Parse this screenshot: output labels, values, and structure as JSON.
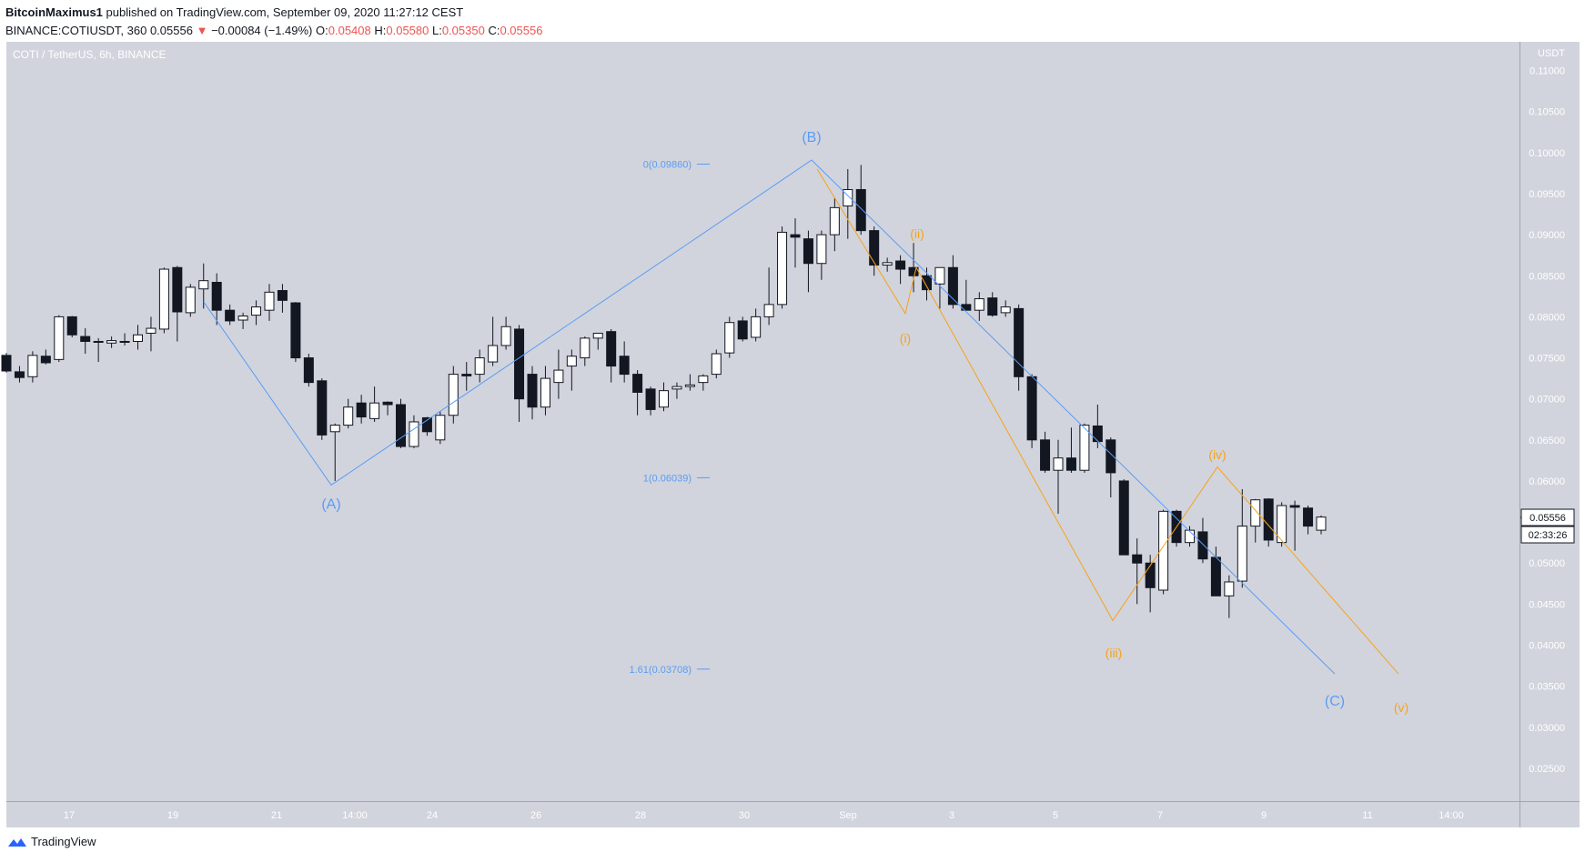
{
  "header": {
    "publisher": "BitcoinMaximus1",
    "published_text": " published on TradingView.com, September 09, 2020 11:27:12 CEST",
    "symbol": "BINANCE:COTIUSDT, 360",
    "last": "0.05556",
    "change_arrow": "▼",
    "change": "−0.00084 (−1.49%)",
    "o_label": "O:",
    "o": "0.05408",
    "h_label": "H:",
    "h": "0.05580",
    "l_label": "L:",
    "l": "0.05350",
    "c_label": "C:",
    "c": "0.05556"
  },
  "chart_title": "COTI / TetherUS, 6h, BINANCE",
  "currency_label": "USDT",
  "footer_brand": "TradingView",
  "colors": {
    "background": "#d1d4dc",
    "bull": "#ffffff",
    "bear": "#131722",
    "wave_primary": "#5b9cf6",
    "wave_sub": "#f7a21b",
    "down": "#ef5350"
  },
  "chart_data": {
    "type": "candlestick",
    "ylim": [
      0.021,
      0.1135
    ],
    "y_ticks": [
      "0.02500",
      "0.03000",
      "0.03500",
      "0.04000",
      "0.04500",
      "0.05000",
      "0.05500",
      "0.06000",
      "0.06500",
      "0.07000",
      "0.07500",
      "0.08000",
      "0.08500",
      "0.09000",
      "0.09500",
      "0.10000",
      "0.10500",
      "0.11000"
    ],
    "x_labels": [
      "17",
      "19",
      "21",
      "14:00",
      "24",
      "26",
      "28",
      "30",
      "Sep",
      "3",
      "5",
      "7",
      "9",
      "11",
      "14:00"
    ],
    "price_label": "0.05556",
    "countdown": "02:33:26",
    "candles": [
      [
        0.0753,
        0.0756,
        0.0732,
        0.0734
      ],
      [
        0.0733,
        0.074,
        0.072,
        0.0726
      ],
      [
        0.0727,
        0.0758,
        0.072,
        0.0753
      ],
      [
        0.0752,
        0.076,
        0.0742,
        0.0744
      ],
      [
        0.0748,
        0.0802,
        0.0745,
        0.08
      ],
      [
        0.08,
        0.0801,
        0.0775,
        0.0778
      ],
      [
        0.0776,
        0.0786,
        0.0755,
        0.077
      ],
      [
        0.077,
        0.0774,
        0.0745,
        0.0769
      ],
      [
        0.0768,
        0.0776,
        0.0762,
        0.0771
      ],
      [
        0.077,
        0.078,
        0.0765,
        0.077
      ],
      [
        0.077,
        0.079,
        0.076,
        0.0778
      ],
      [
        0.078,
        0.08,
        0.0758,
        0.0786
      ],
      [
        0.0785,
        0.086,
        0.078,
        0.0858
      ],
      [
        0.086,
        0.0862,
        0.077,
        0.0806
      ],
      [
        0.0805,
        0.084,
        0.08,
        0.0836
      ],
      [
        0.0834,
        0.0865,
        0.081,
        0.0844
      ],
      [
        0.0842,
        0.0853,
        0.079,
        0.0808
      ],
      [
        0.0808,
        0.0815,
        0.079,
        0.0795
      ],
      [
        0.0796,
        0.0805,
        0.0785,
        0.0801
      ],
      [
        0.0802,
        0.082,
        0.079,
        0.0812
      ],
      [
        0.0808,
        0.084,
        0.0795,
        0.083
      ],
      [
        0.0832,
        0.084,
        0.0805,
        0.082
      ],
      [
        0.0817,
        0.0818,
        0.0745,
        0.075
      ],
      [
        0.075,
        0.0755,
        0.0715,
        0.072
      ],
      [
        0.0722,
        0.0725,
        0.065,
        0.0656
      ],
      [
        0.066,
        0.067,
        0.06,
        0.0668
      ],
      [
        0.0668,
        0.07,
        0.0664,
        0.069
      ],
      [
        0.0695,
        0.0705,
        0.067,
        0.0678
      ],
      [
        0.0676,
        0.0715,
        0.0672,
        0.0695
      ],
      [
        0.0696,
        0.0697,
        0.068,
        0.0693
      ],
      [
        0.0693,
        0.07,
        0.064,
        0.0642
      ],
      [
        0.0642,
        0.068,
        0.064,
        0.0672
      ],
      [
        0.0677,
        0.0678,
        0.0655,
        0.066
      ],
      [
        0.065,
        0.0685,
        0.0645,
        0.068
      ],
      [
        0.068,
        0.074,
        0.067,
        0.073
      ],
      [
        0.073,
        0.0745,
        0.071,
        0.0728
      ],
      [
        0.073,
        0.076,
        0.072,
        0.075
      ],
      [
        0.0745,
        0.08,
        0.074,
        0.0765
      ],
      [
        0.0765,
        0.08,
        0.076,
        0.0788
      ],
      [
        0.0785,
        0.079,
        0.0672,
        0.07
      ],
      [
        0.073,
        0.074,
        0.0675,
        0.069
      ],
      [
        0.069,
        0.074,
        0.068,
        0.0725
      ],
      [
        0.072,
        0.076,
        0.07,
        0.0735
      ],
      [
        0.074,
        0.076,
        0.071,
        0.0752
      ],
      [
        0.075,
        0.0776,
        0.074,
        0.0774
      ],
      [
        0.0774,
        0.078,
        0.076,
        0.078
      ],
      [
        0.0782,
        0.0785,
        0.072,
        0.074
      ],
      [
        0.0752,
        0.077,
        0.072,
        0.073
      ],
      [
        0.073,
        0.0735,
        0.068,
        0.0708
      ],
      [
        0.0712,
        0.0715,
        0.068,
        0.0687
      ],
      [
        0.069,
        0.072,
        0.0685,
        0.071
      ],
      [
        0.0712,
        0.072,
        0.07,
        0.0715
      ],
      [
        0.0715,
        0.073,
        0.071,
        0.0717
      ],
      [
        0.072,
        0.073,
        0.071,
        0.0728
      ],
      [
        0.073,
        0.076,
        0.0725,
        0.0755
      ],
      [
        0.0756,
        0.08,
        0.075,
        0.0793
      ],
      [
        0.0795,
        0.08,
        0.077,
        0.0773
      ],
      [
        0.0775,
        0.081,
        0.077,
        0.08
      ],
      [
        0.08,
        0.086,
        0.079,
        0.0815
      ],
      [
        0.0815,
        0.091,
        0.081,
        0.0903
      ],
      [
        0.09,
        0.092,
        0.086,
        0.0897
      ],
      [
        0.0895,
        0.0905,
        0.083,
        0.0865
      ],
      [
        0.0865,
        0.0905,
        0.0845,
        0.09
      ],
      [
        0.09,
        0.0945,
        0.088,
        0.0933
      ],
      [
        0.0935,
        0.098,
        0.0895,
        0.0955
      ],
      [
        0.0955,
        0.0985,
        0.09,
        0.0905
      ],
      [
        0.0905,
        0.091,
        0.085,
        0.0863
      ],
      [
        0.0863,
        0.0872,
        0.0855,
        0.0866
      ],
      [
        0.0868,
        0.0875,
        0.084,
        0.0858
      ],
      [
        0.086,
        0.089,
        0.083,
        0.085
      ],
      [
        0.085,
        0.086,
        0.082,
        0.0833
      ],
      [
        0.084,
        0.086,
        0.081,
        0.086
      ],
      [
        0.086,
        0.0875,
        0.081,
        0.0815
      ],
      [
        0.0815,
        0.0845,
        0.081,
        0.0808
      ],
      [
        0.0808,
        0.083,
        0.0795,
        0.0822
      ],
      [
        0.0823,
        0.083,
        0.08,
        0.0802
      ],
      [
        0.0805,
        0.082,
        0.08,
        0.0812
      ],
      [
        0.081,
        0.0815,
        0.071,
        0.0727
      ],
      [
        0.0727,
        0.073,
        0.064,
        0.065
      ],
      [
        0.065,
        0.066,
        0.061,
        0.0613
      ],
      [
        0.0613,
        0.065,
        0.056,
        0.0628
      ],
      [
        0.0628,
        0.0665,
        0.061,
        0.0613
      ],
      [
        0.0613,
        0.067,
        0.061,
        0.0668
      ],
      [
        0.0667,
        0.0693,
        0.064,
        0.0648
      ],
      [
        0.065,
        0.0653,
        0.058,
        0.061
      ],
      [
        0.06,
        0.0602,
        0.0515,
        0.051
      ],
      [
        0.051,
        0.053,
        0.045,
        0.05
      ],
      [
        0.05,
        0.051,
        0.044,
        0.047
      ],
      [
        0.0467,
        0.0565,
        0.0462,
        0.0563
      ],
      [
        0.0563,
        0.0565,
        0.052,
        0.0525
      ],
      [
        0.0525,
        0.0545,
        0.052,
        0.054
      ],
      [
        0.0538,
        0.0555,
        0.05,
        0.0505
      ],
      [
        0.0507,
        0.052,
        0.046,
        0.046
      ],
      [
        0.046,
        0.0485,
        0.0433,
        0.0477
      ],
      [
        0.0478,
        0.059,
        0.047,
        0.0545
      ],
      [
        0.0545,
        0.0578,
        0.0525,
        0.0577
      ],
      [
        0.0578,
        0.0579,
        0.052,
        0.0528
      ],
      [
        0.0525,
        0.0574,
        0.052,
        0.057
      ],
      [
        0.057,
        0.0576,
        0.0515,
        0.0568
      ],
      [
        0.0567,
        0.057,
        0.0535,
        0.0545
      ],
      [
        0.054,
        0.0558,
        0.0535,
        0.0556
      ]
    ],
    "waves": [
      {
        "name": "(A)",
        "price": 0.0595
      },
      {
        "name": "(B)",
        "price": 0.0991
      },
      {
        "name": "(C)",
        "price": 0.0365
      }
    ],
    "sub_waves": [
      {
        "name": "(i)",
        "price": 0.0804
      },
      {
        "name": "(ii)",
        "price": 0.086
      },
      {
        "name": "(iii)",
        "price": 0.043
      },
      {
        "name": "(iv)",
        "price": 0.0617
      },
      {
        "name": "(v)",
        "price": 0.0365
      }
    ],
    "fib_levels": [
      {
        "label": "0(0.09860)",
        "price": 0.0986
      },
      {
        "label": "1(0.06039)",
        "price": 0.06039
      },
      {
        "label": "1.61(0.03708)",
        "price": 0.03708
      }
    ]
  }
}
